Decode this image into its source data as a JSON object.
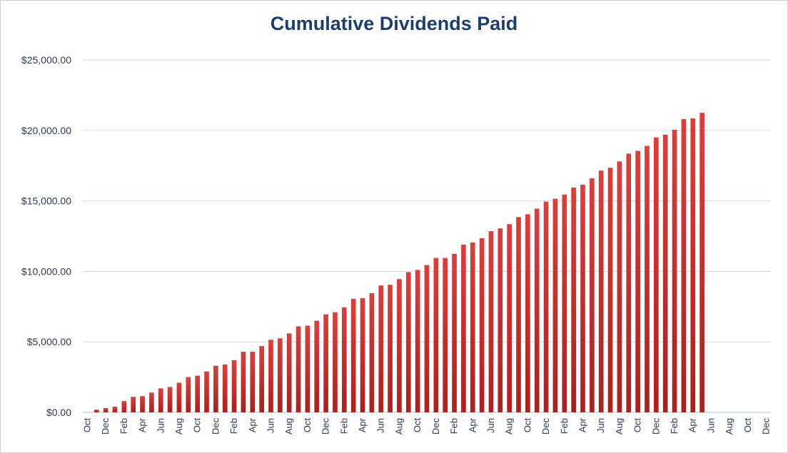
{
  "chart_data": {
    "type": "bar",
    "title": "Cumulative Dividends Paid",
    "xlabel": "",
    "ylabel": "",
    "ylim": [
      0,
      25000
    ],
    "yticks": [
      "$0.00",
      "$5,000.00",
      "$10,000.00",
      "$15,000.00",
      "$20,000.00",
      "$25,000.00"
    ],
    "ytick_values": [
      0,
      5000,
      10000,
      15000,
      20000,
      25000
    ],
    "grid": true,
    "legend": "none",
    "bar_color": "#c0302e",
    "categories": [
      "Oct",
      "Nov",
      "Dec",
      "Jan",
      "Feb",
      "Mar",
      "Apr",
      "May",
      "Jun",
      "Jul",
      "Aug",
      "Sep",
      "Oct",
      "Nov",
      "Dec",
      "Jan",
      "Feb",
      "Mar",
      "Apr",
      "May",
      "Jun",
      "Jul",
      "Aug",
      "Sep",
      "Oct",
      "Nov",
      "Dec",
      "Jan",
      "Feb",
      "Mar",
      "Apr",
      "May",
      "Jun",
      "Jul",
      "Aug",
      "Sep",
      "Oct",
      "Nov",
      "Dec",
      "Jan",
      "Feb",
      "Mar",
      "Apr",
      "May",
      "Jun",
      "Jul",
      "Aug",
      "Sep",
      "Oct",
      "Nov",
      "Dec",
      "Jan",
      "Feb",
      "Mar",
      "Apr",
      "May",
      "Jun",
      "Jul",
      "Aug",
      "Sep",
      "Oct",
      "Nov",
      "Dec",
      "Jan",
      "Feb",
      "Mar",
      "Apr",
      "May",
      "Jun",
      "Jul",
      "Aug",
      "Sep",
      "Oct",
      "Nov",
      "Dec"
    ],
    "tick_labels_shown": [
      "Oct",
      "Dec",
      "Feb",
      "Apr",
      "Jun",
      "Aug",
      "Oct",
      "Dec",
      "Feb",
      "Apr",
      "Jun",
      "Aug",
      "Oct",
      "Dec",
      "Feb",
      "Apr",
      "Jun",
      "Aug",
      "Oct",
      "Dec",
      "Feb",
      "Apr",
      "Jun",
      "Aug",
      "Oct",
      "Dec",
      "Feb",
      "Apr",
      "Jun",
      "Aug",
      "Oct",
      "Dec",
      "Feb",
      "Apr",
      "Jun",
      "Aug",
      "Oct",
      "Dec"
    ],
    "values": [
      0,
      190,
      300,
      400,
      800,
      1100,
      1150,
      1400,
      1700,
      1800,
      2100,
      2500,
      2600,
      2900,
      3300,
      3400,
      3700,
      4300,
      4300,
      4700,
      5150,
      5250,
      5600,
      6100,
      6150,
      6500,
      6950,
      7100,
      7450,
      8050,
      8100,
      8450,
      9000,
      9050,
      9450,
      9950,
      10100,
      10450,
      10950,
      10950,
      11250,
      11900,
      12050,
      12350,
      12850,
      13050,
      13350,
      13850,
      14050,
      14450,
      14950,
      15150,
      15450,
      15950,
      16150,
      16600,
      17150,
      17350,
      17800,
      18350,
      18550,
      18900,
      19500,
      19700,
      20050,
      20800,
      20850,
      21250,
      null,
      null,
      null,
      null,
      null,
      null,
      null
    ]
  }
}
